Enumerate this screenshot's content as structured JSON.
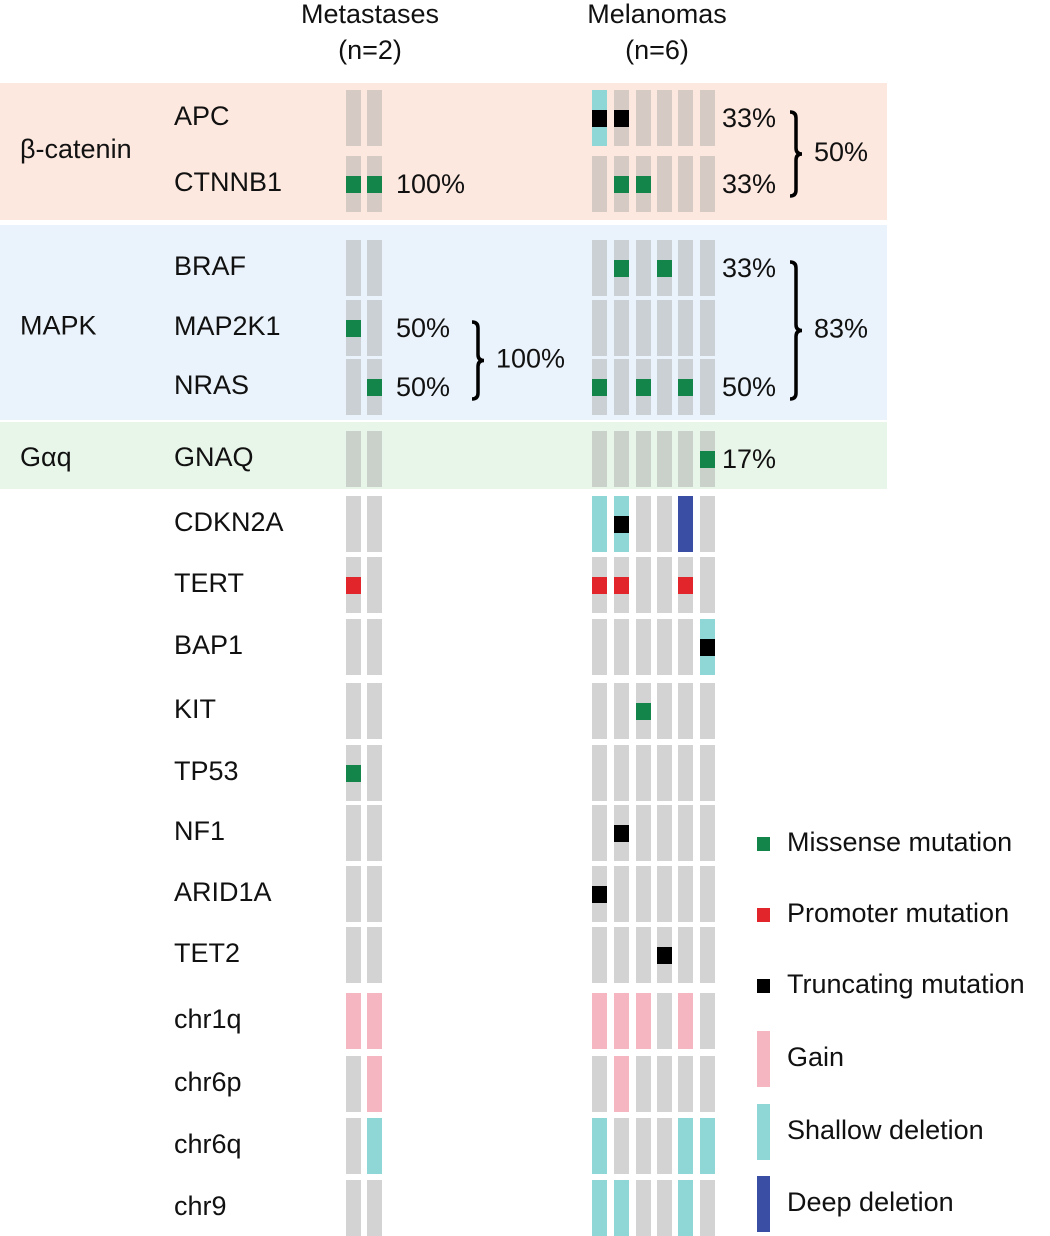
{
  "header": {
    "columns": [
      {
        "title": "Metastases",
        "n": "(n=2)"
      },
      {
        "title": "Melanomas",
        "n": "(n=6)"
      }
    ]
  },
  "legend": [
    {
      "label": "Missense mutation",
      "color": "#13854a",
      "kind": "mutation"
    },
    {
      "label": "Promoter mutation",
      "color": "#e1252b",
      "kind": "mutation"
    },
    {
      "label": "Truncating mutation",
      "color": "#000000",
      "kind": "mutation"
    },
    {
      "label": "Gain",
      "color": "#f5b5c1",
      "kind": "copy-number"
    },
    {
      "label": "Shallow deletion",
      "color": "#8fd6d6",
      "kind": "copy-number"
    },
    {
      "label": "Deep deletion",
      "color": "#3a4ea3",
      "kind": "copy-number"
    }
  ],
  "groups": [
    {
      "label": "β-catenin",
      "color": "#fde8df",
      "melanomas_total": "50%",
      "rows": [
        {
          "gene": "APC",
          "metastases": [
            [],
            []
          ],
          "melanomas": [
            [
              4,
              2
            ],
            [
              2
            ],
            [],
            [],
            [],
            []
          ],
          "melanomas_freq": "33%"
        },
        {
          "gene": "CTNNB1",
          "metastases": [
            [
              0
            ],
            [
              0
            ]
          ],
          "melanomas": [
            [],
            [
              0
            ],
            [
              0
            ],
            [],
            [],
            []
          ],
          "metastases_freq": "100%",
          "melanomas_freq": "33%"
        }
      ]
    },
    {
      "label": "MAPK",
      "color": "#eaf3fb",
      "metastases_total": "100%",
      "melanomas_total": "83%",
      "rows": [
        {
          "gene": "BRAF",
          "metastases": [
            [],
            []
          ],
          "melanomas": [
            [],
            [
              0
            ],
            [],
            [
              0
            ],
            [],
            []
          ],
          "melanomas_freq": "33%"
        },
        {
          "gene": "MAP2K1",
          "metastases": [
            [
              0
            ],
            []
          ],
          "melanomas": [
            [],
            [],
            [],
            [],
            [],
            []
          ],
          "metastases_freq": "50%"
        },
        {
          "gene": "NRAS",
          "metastases": [
            [],
            [
              0
            ]
          ],
          "melanomas": [
            [
              0
            ],
            [],
            [
              0
            ],
            [],
            [
              0
            ],
            []
          ],
          "metastases_freq": "50%",
          "melanomas_freq": "50%"
        }
      ]
    },
    {
      "label": "Gαq",
      "color": "#e8f5e9",
      "rows": [
        {
          "gene": "GNAQ",
          "metastases": [
            [],
            []
          ],
          "melanomas": [
            [],
            [],
            [],
            [],
            [],
            [
              0
            ]
          ],
          "melanomas_freq": "17%"
        }
      ]
    },
    {
      "rows": [
        {
          "gene": "CDKN2A",
          "metastases": [
            [],
            []
          ],
          "melanomas": [
            [
              4
            ],
            [
              4,
              2
            ],
            [],
            [],
            [
              5
            ],
            []
          ]
        },
        {
          "gene": "TERT",
          "metastases": [
            [
              1
            ],
            []
          ],
          "melanomas": [
            [
              1
            ],
            [
              1
            ],
            [],
            [],
            [
              1
            ],
            []
          ]
        },
        {
          "gene": "BAP1",
          "metastases": [
            [],
            []
          ],
          "melanomas": [
            [],
            [],
            [],
            [],
            [],
            [
              4,
              2
            ]
          ]
        },
        {
          "gene": "KIT",
          "metastases": [
            [],
            []
          ],
          "melanomas": [
            [],
            [],
            [
              0
            ],
            [],
            [],
            []
          ]
        },
        {
          "gene": "TP53",
          "metastases": [
            [
              0
            ],
            []
          ],
          "melanomas": [
            [],
            [],
            [],
            [],
            [],
            []
          ]
        },
        {
          "gene": "NF1",
          "metastases": [
            [],
            []
          ],
          "melanomas": [
            [],
            [
              2
            ],
            [],
            [],
            [],
            []
          ]
        },
        {
          "gene": "ARID1A",
          "metastases": [
            [],
            []
          ],
          "melanomas": [
            [
              2
            ],
            [],
            [],
            [],
            [],
            []
          ]
        },
        {
          "gene": "TET2",
          "metastases": [
            [],
            []
          ],
          "melanomas": [
            [],
            [],
            [],
            [
              2
            ],
            [],
            []
          ]
        },
        {
          "gene": "chr1q",
          "metastases": [
            [
              3
            ],
            [
              3
            ]
          ],
          "melanomas": [
            [
              3
            ],
            [
              3
            ],
            [
              3
            ],
            [],
            [
              3
            ],
            []
          ]
        },
        {
          "gene": "chr6p",
          "metastases": [
            [],
            [
              3
            ]
          ],
          "melanomas": [
            [],
            [
              3
            ],
            [],
            [],
            [],
            []
          ]
        },
        {
          "gene": "chr6q",
          "metastases": [
            [],
            [
              4
            ]
          ],
          "melanomas": [
            [
              4
            ],
            [],
            [],
            [],
            [
              4
            ],
            [
              4
            ]
          ]
        },
        {
          "gene": "chr9",
          "metastases": [
            [],
            []
          ],
          "melanomas": [
            [
              4
            ],
            [
              4
            ],
            [],
            [],
            [
              4
            ],
            []
          ]
        }
      ]
    }
  ]
}
